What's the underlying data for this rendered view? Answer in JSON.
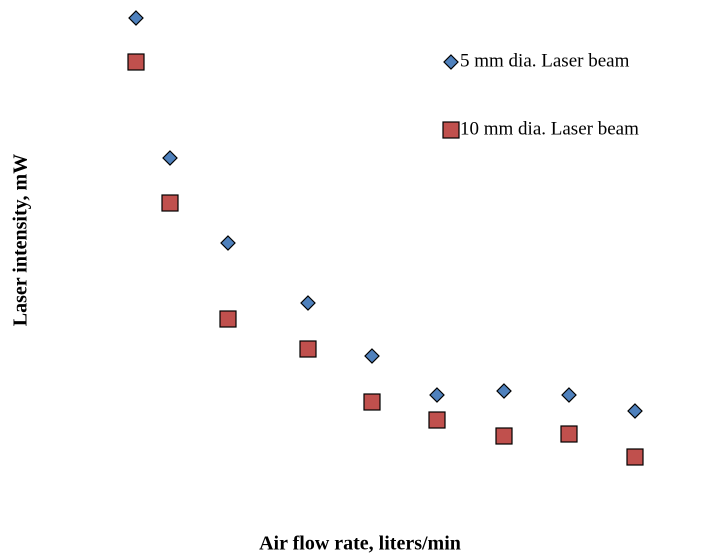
{
  "chart_data": {
    "type": "scatter",
    "x_label": "Air flow rate, liters/min",
    "y_label": "Laser intensity, mW",
    "xlim": [
      0,
      12
    ],
    "ylim": [
      0,
      10
    ],
    "grid": false,
    "legend": "top-right",
    "series": [
      {
        "name": "5 mm dia. Laser beam",
        "color": "#4f81bd",
        "marker": "diamond",
        "x": [
          0.72,
          1.4,
          2.56,
          4.16,
          5.44,
          6.74,
          8.08,
          9.38,
          10.7
        ],
        "values": [
          9.64,
          6.84,
          5.14,
          3.94,
          2.88,
          2.1,
          2.18,
          2.1,
          1.78
        ]
      },
      {
        "name": "10 mm dia. Laser beam",
        "color": "#c0504d",
        "marker": "square",
        "x": [
          0.72,
          1.4,
          2.56,
          4.16,
          5.44,
          6.74,
          8.08,
          9.38,
          10.7
        ],
        "values": [
          8.76,
          5.94,
          3.62,
          3.02,
          1.96,
          1.6,
          1.28,
          1.32,
          0.86
        ]
      }
    ]
  }
}
